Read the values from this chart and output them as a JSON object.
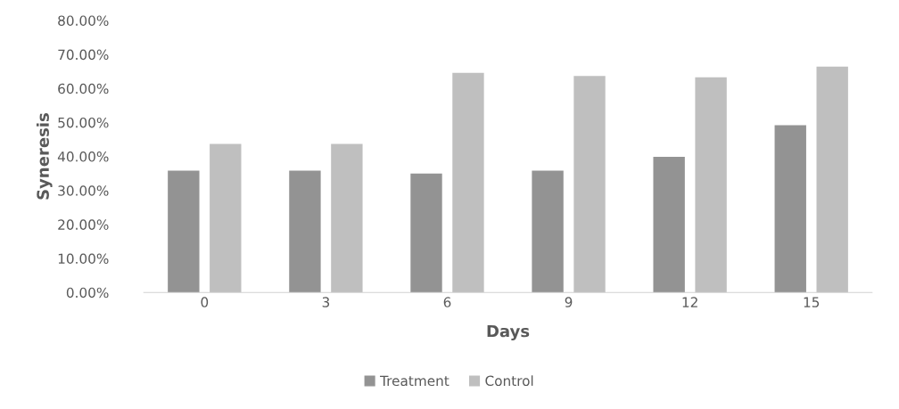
{
  "chart_data": {
    "type": "bar",
    "xlabel": "Days",
    "ylabel": "Syneresis",
    "categories": [
      "0",
      "3",
      "6",
      "9",
      "12",
      "15"
    ],
    "series": [
      {
        "name": "Treatment",
        "color": "#939393",
        "values": [
          35.8,
          35.8,
          35.0,
          35.8,
          39.9,
          49.2
        ]
      },
      {
        "name": "Control",
        "color": "#bfbfbf",
        "values": [
          43.7,
          43.7,
          64.6,
          63.7,
          63.3,
          66.4
        ]
      }
    ],
    "ylim": [
      0,
      80
    ],
    "yticks": [
      {
        "value": 0,
        "label": "0.00%"
      },
      {
        "value": 10,
        "label": "10.00%"
      },
      {
        "value": 20,
        "label": "20.00%"
      },
      {
        "value": 30,
        "label": "30.00%"
      },
      {
        "value": 40,
        "label": "40.00%"
      },
      {
        "value": 50,
        "label": "50.00%"
      },
      {
        "value": 60,
        "label": "60.00%"
      },
      {
        "value": 70,
        "label": "70.00%"
      },
      {
        "value": 80,
        "label": "80.00%"
      }
    ],
    "grid": false,
    "legend": "bottom"
  }
}
